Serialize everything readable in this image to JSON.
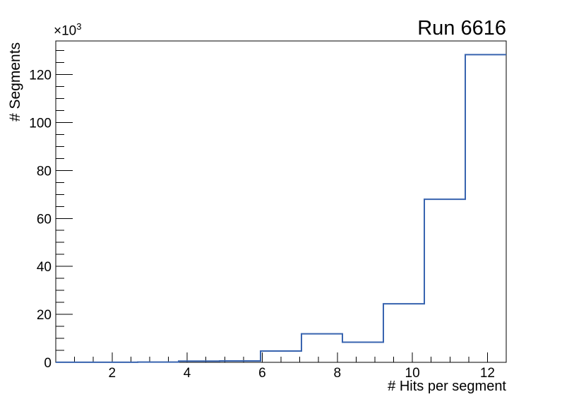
{
  "canvas": {
    "background": "#ffffff",
    "frame_color": "#000000"
  },
  "title": "Run 6616",
  "axes": {
    "x": {
      "label": "# Hits per segment",
      "min": 0.5,
      "max": 12.5,
      "major_ticks": [
        2,
        4,
        6,
        8,
        10,
        12
      ],
      "minor_tick_step": 0.5
    },
    "y": {
      "label": "# Segments",
      "exponent_base": "×10",
      "exponent_power": "3",
      "min": 0,
      "max": 134,
      "major_ticks": [
        0,
        20,
        40,
        60,
        80,
        100,
        120
      ],
      "minor_tick_step": 5
    }
  },
  "chart_data": {
    "type": "bar",
    "subtype": "histogram-step-outline",
    "title": "Run 6616",
    "xlabel": "# Hits per segment",
    "ylabel": "# Segments",
    "y_units": "×10^3",
    "n_bins": 11,
    "bin_edges": [
      0.5,
      1.591,
      2.682,
      3.773,
      4.864,
      5.955,
      7.045,
      8.136,
      9.227,
      10.318,
      11.409,
      12.5
    ],
    "values_in_thousands": [
      0.05,
      0.05,
      0.1,
      0.5,
      0.6,
      4.7,
      11.9,
      8.4,
      24.4,
      68,
      128.3
    ],
    "xlim": [
      0.5,
      12.5
    ],
    "ylim": [
      0,
      134
    ],
    "line_color": "#3763af",
    "grid": false,
    "legend": false
  }
}
